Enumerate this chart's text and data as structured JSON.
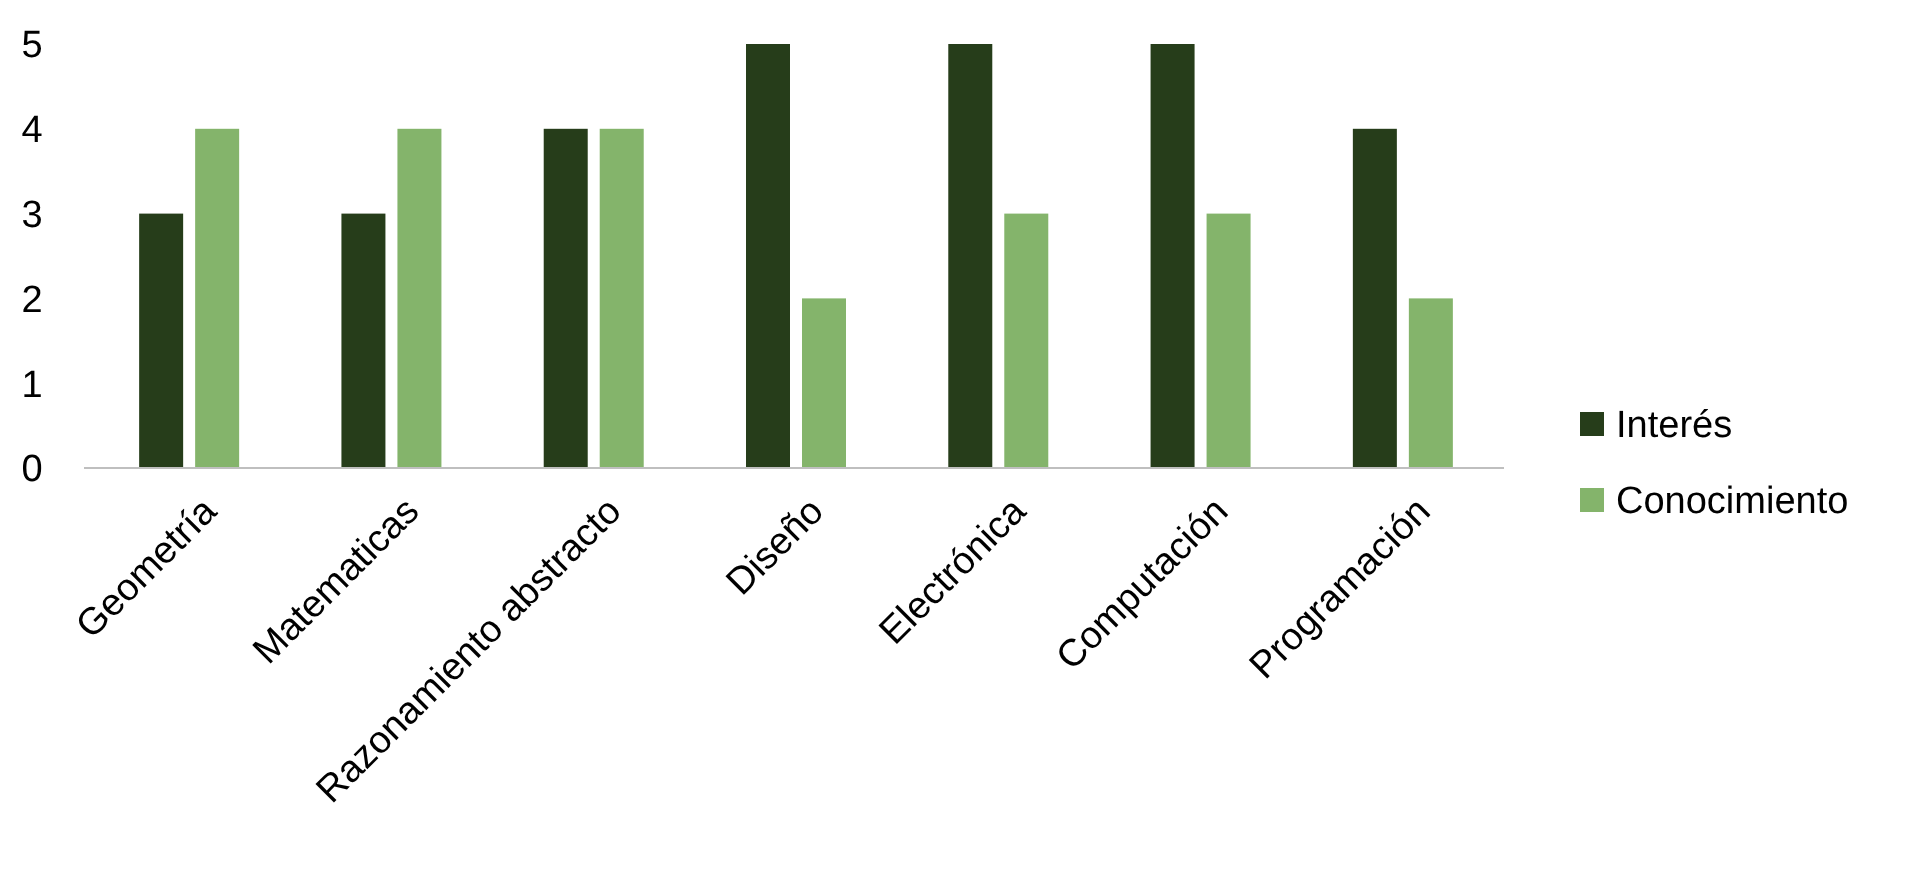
{
  "chart_data": {
    "type": "bar",
    "categories": [
      "Geometría",
      "Matematicas",
      "Razonamiento abstracto",
      "Diseño",
      "Electrónica",
      "Computación",
      "Programación"
    ],
    "series": [
      {
        "name": "Interés",
        "color": "#263d1a",
        "values": [
          3,
          3,
          4,
          5,
          5,
          5,
          4
        ]
      },
      {
        "name": "Conocimiento",
        "color": "#84b46b",
        "values": [
          4,
          4,
          4,
          2,
          3,
          3,
          2
        ]
      }
    ],
    "ylim": [
      0,
      5
    ],
    "yticks": [
      0,
      1,
      2,
      3,
      4,
      5
    ],
    "grid": false,
    "legend": "right"
  }
}
